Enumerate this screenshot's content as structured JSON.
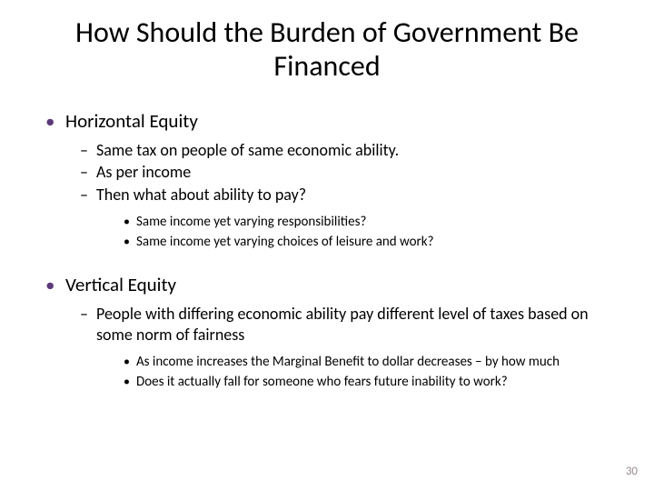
{
  "title": "How Should the Burden of Government Be Financed",
  "section1": {
    "heading": "Horizontal Equity",
    "points": [
      "Same tax on people of same economic ability.",
      "As per income",
      "Then what about ability to pay?"
    ],
    "subpoints": [
      "Same income yet varying responsibilities?",
      "Same income yet varying choices of leisure and work?"
    ]
  },
  "section2": {
    "heading": "Vertical Equity",
    "points": [
      "People with differing economic ability pay different level of taxes based on some norm of fairness"
    ],
    "subpoints": [
      "As income increases the Marginal Benefit to dollar decreases – by how much",
      "Does it actually fall for someone who fears future inability to work?"
    ]
  },
  "pageNumber": "30",
  "colors": {
    "bullet_primary": "#5b3a7a",
    "text": "#000000",
    "background": "#ffffff",
    "page_number": "#9a8a93"
  },
  "fonts": {
    "title_size": 32,
    "level1_size": 21,
    "level2_size": 18,
    "level3_size": 15
  }
}
